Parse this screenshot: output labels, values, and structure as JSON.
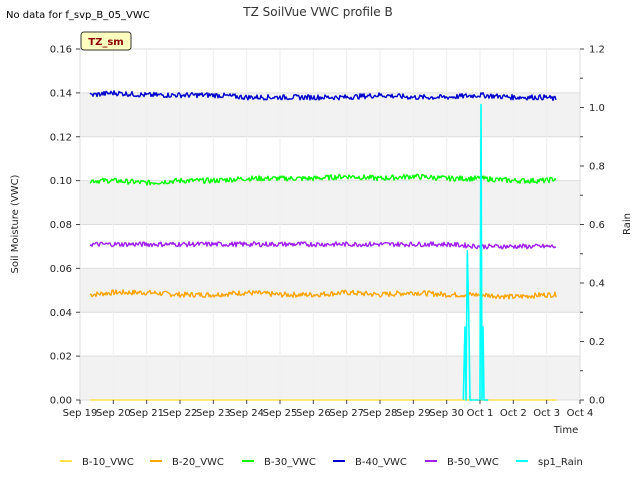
{
  "chart_data": {
    "type": "line",
    "title": "TZ SoilVue VWC profile B",
    "no_data_note": "No data for f_svp_B_05_VWC",
    "badge": "TZ_sm",
    "xlabel": "Time",
    "ylabel": "Soil Moisture (VWC)",
    "y2label": "Rain",
    "xlim": [
      0,
      15
    ],
    "ylim": [
      0,
      0.16
    ],
    "y2lim": [
      0,
      1.2
    ],
    "x_ticks": [
      {
        "pos": 0,
        "label": "Sep 19"
      },
      {
        "pos": 1,
        "label": "Sep 20"
      },
      {
        "pos": 2,
        "label": "Sep 21"
      },
      {
        "pos": 3,
        "label": "Sep 22"
      },
      {
        "pos": 4,
        "label": "Sep 23"
      },
      {
        "pos": 5,
        "label": "Sep 24"
      },
      {
        "pos": 6,
        "label": "Sep 25"
      },
      {
        "pos": 7,
        "label": "Sep 26"
      },
      {
        "pos": 8,
        "label": "Sep 27"
      },
      {
        "pos": 9,
        "label": "Sep 28"
      },
      {
        "pos": 10,
        "label": "Sep 29"
      },
      {
        "pos": 11,
        "label": "Sep 30"
      },
      {
        "pos": 12,
        "label": "Oct 1"
      },
      {
        "pos": 13,
        "label": "Oct 2"
      },
      {
        "pos": 14,
        "label": "Oct 3"
      },
      {
        "pos": 15,
        "label": "Oct 4"
      }
    ],
    "y_ticks": [
      "0.00",
      "0.02",
      "0.04",
      "0.06",
      "0.08",
      "0.10",
      "0.12",
      "0.14",
      "0.16"
    ],
    "y2_ticks": [
      "0.0",
      "0.2",
      "0.4",
      "0.6",
      "0.8",
      "1.0",
      "1.2"
    ],
    "grid": true,
    "legend_position": "bottom",
    "series": [
      {
        "name": "B-10_VWC",
        "color": "#ffe24d",
        "axis": "left",
        "x": [
          0.3,
          14.3
        ],
        "values": [
          0.0,
          0.0
        ]
      },
      {
        "name": "B-20_VWC",
        "color": "#ffa500",
        "axis": "left",
        "x": [
          0.3,
          1,
          2,
          3,
          4,
          5,
          6,
          7,
          8,
          9,
          10,
          11,
          12,
          13,
          14,
          14.3
        ],
        "values": [
          0.048,
          0.049,
          0.049,
          0.048,
          0.048,
          0.049,
          0.048,
          0.048,
          0.049,
          0.048,
          0.049,
          0.048,
          0.048,
          0.047,
          0.048,
          0.048
        ],
        "noise": 0.0012
      },
      {
        "name": "B-30_VWC",
        "color": "#00ff00",
        "axis": "left",
        "x": [
          0.3,
          1,
          2,
          3,
          4,
          5,
          6,
          7,
          8,
          9,
          10,
          11,
          12,
          13,
          14,
          14.3
        ],
        "values": [
          0.1,
          0.1,
          0.099,
          0.1,
          0.1,
          0.101,
          0.101,
          0.101,
          0.102,
          0.101,
          0.102,
          0.101,
          0.101,
          0.1,
          0.1,
          0.101
        ],
        "noise": 0.0012
      },
      {
        "name": "B-40_VWC",
        "color": "#0000cc",
        "axis": "left",
        "x": [
          0.3,
          1,
          2,
          3,
          4,
          5,
          6,
          7,
          8,
          9,
          10,
          11,
          12,
          13,
          14,
          14.3
        ],
        "values": [
          0.139,
          0.14,
          0.139,
          0.139,
          0.139,
          0.138,
          0.138,
          0.138,
          0.138,
          0.139,
          0.138,
          0.138,
          0.139,
          0.138,
          0.138,
          0.137
        ],
        "noise": 0.0012
      },
      {
        "name": "B-50_VWC",
        "color": "#a020f0",
        "axis": "left",
        "x": [
          0.3,
          1,
          2,
          3,
          4,
          5,
          6,
          7,
          8,
          9,
          10,
          11,
          12,
          13,
          14,
          14.3
        ],
        "values": [
          0.071,
          0.071,
          0.071,
          0.071,
          0.071,
          0.071,
          0.071,
          0.071,
          0.071,
          0.071,
          0.071,
          0.071,
          0.07,
          0.07,
          0.07,
          0.07
        ],
        "noise": 0.0011
      },
      {
        "name": "sp1_Rain",
        "color": "#00ffff",
        "axis": "right",
        "x": [
          11.5,
          11.55,
          11.58,
          11.62,
          11.66,
          11.7,
          11.75,
          11.8,
          11.95,
          12.0,
          12.03,
          12.06,
          12.09,
          12.12,
          12.15,
          12.18,
          12.22,
          12.25
        ],
        "values": [
          0.0,
          0.25,
          0.0,
          0.51,
          0.3,
          0.0,
          0.0,
          0.0,
          0.0,
          0.0,
          1.01,
          0.0,
          0.25,
          0.0,
          0.0,
          0.0,
          0.0,
          0.0
        ]
      }
    ]
  }
}
